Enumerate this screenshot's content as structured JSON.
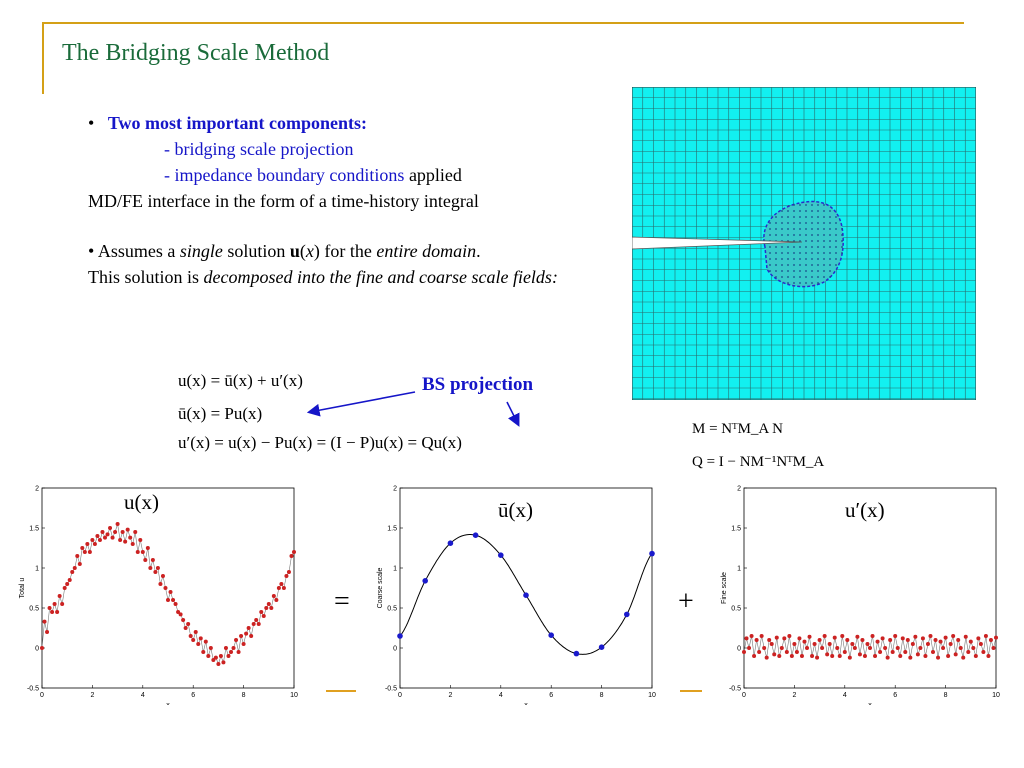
{
  "slide": {
    "title": "The Bridging Scale Method",
    "bullet1": {
      "marker": "•",
      "heading": "Two most important components:",
      "sub1": "- bridging scale projection",
      "sub2": "- impedance boundary conditions",
      "sub2_tail": " applied",
      "line4": "MD/FE interface in the form of a time-history integral"
    },
    "bullet2": {
      "marker": "•",
      "p1": " Assumes a ",
      "p2": "single",
      "p3": " solution ",
      "p4": "u",
      "p5": "(",
      "p6": "x",
      "p7": ") for the ",
      "p8": "entire domain",
      "p9": ".",
      "p10": "This solution is ",
      "p11": "decomposed into the fine and coarse scale fields:"
    },
    "equations": {
      "eq1": "u(x) = ū(x) + u′(x)",
      "eq2": "ū(x) = Pu(x)",
      "eq3": "u′(x) = u(x) − Pu(x) = (I − P)u(x) = Qu(x)",
      "bs_label": "BS projection",
      "m_def": "M = NᵀM_A N",
      "q_def": "Q = I − NM⁻¹NᵀM_A"
    },
    "plot_labels": {
      "total": "u(x)",
      "coarse": "ū(x)",
      "fine": "u′(x)",
      "equals": "=",
      "plus": "+"
    }
  },
  "chart_data": [
    {
      "type": "scatter",
      "title": "u(x)",
      "xlabel": "x",
      "ylabel": "Total u",
      "xlim": [
        0,
        10
      ],
      "ylim": [
        -0.5,
        2
      ],
      "xticks": [
        0,
        2,
        4,
        6,
        8,
        10
      ],
      "yticks": [
        -0.5,
        0,
        0.5,
        1,
        1.5,
        2
      ],
      "series": [
        {
          "color": "#cc2222",
          "x": [
            0,
            0.1,
            0.2,
            0.3,
            0.4,
            0.5,
            0.6,
            0.7,
            0.8,
            0.9,
            1.0,
            1.1,
            1.2,
            1.3,
            1.4,
            1.5,
            1.6,
            1.7,
            1.8,
            1.9,
            2.0,
            2.1,
            2.2,
            2.3,
            2.4,
            2.5,
            2.6,
            2.7,
            2.8,
            2.9,
            3.0,
            3.1,
            3.2,
            3.3,
            3.4,
            3.5,
            3.6,
            3.7,
            3.8,
            3.9,
            4.0,
            4.1,
            4.2,
            4.3,
            4.4,
            4.5,
            4.6,
            4.7,
            4.8,
            4.9,
            5.0,
            5.1,
            5.2,
            5.3,
            5.4,
            5.5,
            5.6,
            5.7,
            5.8,
            5.9,
            6.0,
            6.1,
            6.2,
            6.3,
            6.4,
            6.5,
            6.6,
            6.7,
            6.8,
            6.9,
            7.0,
            7.1,
            7.2,
            7.3,
            7.4,
            7.5,
            7.6,
            7.7,
            7.8,
            7.9,
            8.0,
            8.1,
            8.2,
            8.3,
            8.4,
            8.5,
            8.6,
            8.7,
            8.8,
            8.9,
            9.0,
            9.1,
            9.2,
            9.3,
            9.4,
            9.5,
            9.6,
            9.7,
            9.8,
            9.9,
            10.0
          ],
          "y": [
            0.0,
            0.33,
            0.2,
            0.5,
            0.45,
            0.55,
            0.45,
            0.65,
            0.55,
            0.75,
            0.8,
            0.85,
            0.95,
            1.0,
            1.15,
            1.05,
            1.25,
            1.2,
            1.3,
            1.2,
            1.35,
            1.3,
            1.4,
            1.35,
            1.45,
            1.38,
            1.42,
            1.5,
            1.38,
            1.45,
            1.55,
            1.35,
            1.45,
            1.33,
            1.48,
            1.38,
            1.3,
            1.45,
            1.2,
            1.35,
            1.2,
            1.1,
            1.25,
            1.0,
            1.1,
            0.95,
            1.0,
            0.8,
            0.9,
            0.75,
            0.6,
            0.7,
            0.6,
            0.55,
            0.45,
            0.42,
            0.35,
            0.25,
            0.3,
            0.15,
            0.1,
            0.2,
            0.05,
            0.12,
            -0.05,
            0.08,
            -0.1,
            0.0,
            -0.15,
            -0.12,
            -0.2,
            -0.1,
            -0.18,
            0.0,
            -0.1,
            -0.05,
            0.0,
            0.1,
            -0.05,
            0.15,
            0.05,
            0.18,
            0.25,
            0.15,
            0.3,
            0.35,
            0.3,
            0.45,
            0.4,
            0.5,
            0.55,
            0.5,
            0.65,
            0.6,
            0.75,
            0.8,
            0.75,
            0.9,
            0.95,
            1.15,
            1.2
          ]
        }
      ]
    },
    {
      "type": "line",
      "title": "ū(x)",
      "xlabel": "x",
      "ylabel": "Coarse scale",
      "xlim": [
        0,
        10
      ],
      "ylim": [
        -0.5,
        2
      ],
      "xticks": [
        0,
        2,
        4,
        6,
        8,
        10
      ],
      "yticks": [
        -0.5,
        0,
        0.5,
        1,
        1.5,
        2
      ],
      "series": [
        {
          "color": "#1a1acc",
          "x": [
            0,
            1,
            2,
            3,
            4,
            5,
            6,
            7,
            8,
            9,
            10
          ],
          "y": [
            0.15,
            0.84,
            1.31,
            1.41,
            1.16,
            0.66,
            0.16,
            -0.07,
            0.01,
            0.42,
            1.18
          ]
        }
      ]
    },
    {
      "type": "scatter",
      "title": "u′(x)",
      "xlabel": "x",
      "ylabel": "Fine scale",
      "xlim": [
        0,
        10
      ],
      "ylim": [
        -0.5,
        2
      ],
      "xticks": [
        0,
        2,
        4,
        6,
        8,
        10
      ],
      "yticks": [
        -0.5,
        0,
        0.5,
        1,
        1.5,
        2
      ],
      "series": [
        {
          "color": "#cc2222",
          "x": [
            0,
            0.1,
            0.2,
            0.3,
            0.4,
            0.5,
            0.6,
            0.7,
            0.8,
            0.9,
            1.0,
            1.1,
            1.2,
            1.3,
            1.4,
            1.5,
            1.6,
            1.7,
            1.8,
            1.9,
            2.0,
            2.1,
            2.2,
            2.3,
            2.4,
            2.5,
            2.6,
            2.7,
            2.8,
            2.9,
            3.0,
            3.1,
            3.2,
            3.3,
            3.4,
            3.5,
            3.6,
            3.7,
            3.8,
            3.9,
            4.0,
            4.1,
            4.2,
            4.3,
            4.4,
            4.5,
            4.6,
            4.7,
            4.8,
            4.9,
            5.0,
            5.1,
            5.2,
            5.3,
            5.4,
            5.5,
            5.6,
            5.7,
            5.8,
            5.9,
            6.0,
            6.1,
            6.2,
            6.3,
            6.4,
            6.5,
            6.6,
            6.7,
            6.8,
            6.9,
            7.0,
            7.1,
            7.2,
            7.3,
            7.4,
            7.5,
            7.6,
            7.7,
            7.8,
            7.9,
            8.0,
            8.1,
            8.2,
            8.3,
            8.4,
            8.5,
            8.6,
            8.7,
            8.8,
            8.9,
            9.0,
            9.1,
            9.2,
            9.3,
            9.4,
            9.5,
            9.6,
            9.7,
            9.8,
            9.9,
            10.0
          ],
          "y": [
            -0.05,
            0.12,
            0.0,
            0.15,
            -0.1,
            0.1,
            -0.05,
            0.15,
            0.0,
            -0.12,
            0.1,
            0.05,
            -0.08,
            0.13,
            -0.1,
            0.0,
            0.12,
            -0.05,
            0.15,
            -0.1,
            0.05,
            -0.05,
            0.12,
            -0.1,
            0.08,
            0.0,
            0.14,
            -0.1,
            0.05,
            -0.12,
            0.1,
            0.0,
            0.15,
            -0.08,
            0.05,
            -0.1,
            0.13,
            0.0,
            -0.1,
            0.15,
            -0.05,
            0.1,
            -0.12,
            0.05,
            0.0,
            0.14,
            -0.08,
            0.1,
            -0.1,
            0.05,
            0.0,
            0.15,
            -0.1,
            0.08,
            -0.05,
            0.12,
            0.0,
            -0.12,
            0.1,
            -0.05,
            0.15,
            0.0,
            -0.1,
            0.12,
            -0.05,
            0.1,
            -0.12,
            0.05,
            0.14,
            -0.08,
            0.0,
            0.12,
            -0.1,
            0.05,
            0.15,
            -0.05,
            0.1,
            -0.12,
            0.08,
            0.0,
            0.13,
            -0.1,
            0.05,
            0.15,
            -0.08,
            0.1,
            0.0,
            -0.12,
            0.14,
            -0.05,
            0.08,
            0.0,
            -0.1,
            0.12,
            0.05,
            -0.05,
            0.15,
            -0.1,
            0.1,
            0.0,
            0.13
          ]
        }
      ]
    }
  ]
}
